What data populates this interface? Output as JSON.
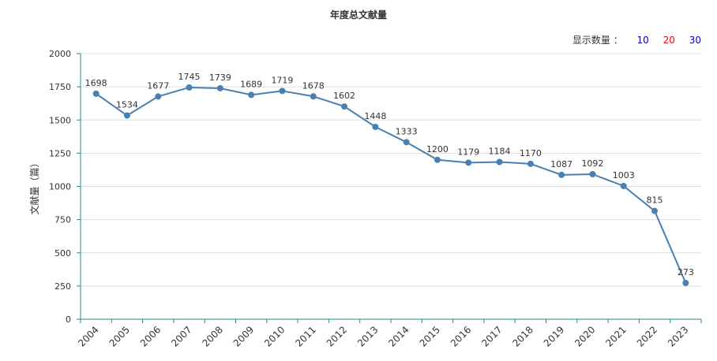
{
  "title": "年度总文献量",
  "controls": {
    "label": "显示数量 ：",
    "options": [
      {
        "text": "10",
        "color": "#0000cc"
      },
      {
        "text": "20",
        "color": "#ff0000"
      },
      {
        "text": "30",
        "color": "#0000cc"
      }
    ]
  },
  "colors": {
    "line": "#4a80b0",
    "axis": "#2a8a8a",
    "grid": "#dddddd",
    "text": "#333333"
  },
  "chart_data": {
    "type": "line",
    "title": "年度总文献量",
    "xlabel": "",
    "ylabel": "文献量（篇）",
    "ylim": [
      0,
      2000
    ],
    "yticks": [
      0,
      250,
      500,
      750,
      1000,
      1250,
      1500,
      1750,
      2000
    ],
    "grid": true,
    "categories": [
      "2004",
      "2005",
      "2006",
      "2007",
      "2008",
      "2009",
      "2010",
      "2011",
      "2012",
      "2013",
      "2014",
      "2015",
      "2016",
      "2017",
      "2018",
      "2019",
      "2020",
      "2021",
      "2022",
      "2023"
    ],
    "series": [
      {
        "values": [
          1698,
          1534,
          1677,
          1745,
          1739,
          1689,
          1719,
          1678,
          1602,
          1448,
          1333,
          1200,
          1179,
          1184,
          1170,
          1087,
          1092,
          1003,
          815,
          273
        ]
      }
    ]
  }
}
